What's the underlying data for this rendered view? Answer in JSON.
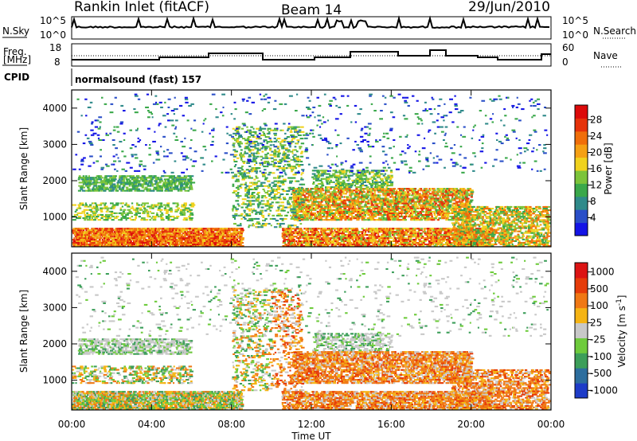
{
  "header": {
    "station": "Rankin Inlet (fitACF)",
    "beam": "Beam 14",
    "date": "29/Jun/2010"
  },
  "strip_nsky": {
    "left_label": "N.Sky",
    "right_label": "N.Search",
    "left_ticks": [
      "10^5",
      "10^0"
    ],
    "right_ticks": [
      "10^5",
      "10^0"
    ]
  },
  "strip_freq": {
    "left_label_1": "Freq.",
    "left_label_2": "[MHz]",
    "right_label": "Nave",
    "left_ticks": [
      "18",
      "8"
    ],
    "right_ticks": [
      "60",
      "0"
    ]
  },
  "cpid": {
    "label": "CPID",
    "value": "normalsound (fast) 157"
  },
  "time_axis": {
    "title": "Time UT",
    "ticks": [
      "00:00",
      "04:00",
      "08:00",
      "12:00",
      "16:00",
      "20:00",
      "00:00"
    ]
  },
  "chart_data": [
    {
      "type": "heatmap",
      "name": "power",
      "ylabel": "Slant Range [km]",
      "yticks": [
        "1000",
        "2000",
        "3000",
        "4000"
      ],
      "ylim": [
        180,
        4500
      ],
      "xlim_hours": [
        0,
        24
      ],
      "colorbar": {
        "label": "Power [dB]",
        "ticks": [
          "4",
          "8",
          "12",
          "16",
          "20",
          "24",
          "28"
        ],
        "colors": [
          "#1414e6",
          "#2a4fc8",
          "#2f8a8a",
          "#3aa84a",
          "#7cc43a",
          "#f0d21e",
          "#f5a014",
          "#f06e0a",
          "#e6320a",
          "#dc0a0a"
        ]
      }
    },
    {
      "type": "heatmap",
      "name": "velocity",
      "ylabel": "Slant Range [km]",
      "yticks": [
        "1000",
        "2000",
        "3000",
        "4000"
      ],
      "ylim": [
        180,
        4500
      ],
      "xlim_hours": [
        0,
        24
      ],
      "colorbar": {
        "label": "Velocity [m s^-1]",
        "ticks": [
          "1000",
          "500",
          "100",
          "25",
          "-25",
          "-100",
          "-500",
          "-1000"
        ],
        "colors": [
          "#1e3cc8",
          "#2d6e9e",
          "#3c9e5a",
          "#6ecb3c",
          "#c8c8c8",
          "#f5b414",
          "#f07814",
          "#e63c0a",
          "#dc1414"
        ]
      }
    }
  ]
}
